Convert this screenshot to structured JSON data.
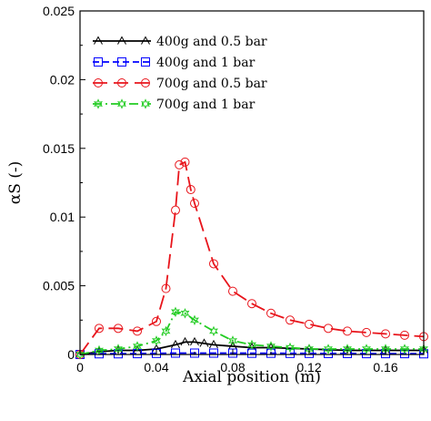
{
  "chart_data": {
    "type": "line",
    "title": "",
    "xlabel": "Axial position (m)",
    "ylabel": "αS (-)",
    "xlim": [
      0,
      0.18
    ],
    "ylim": [
      0,
      0.025
    ],
    "x_ticks": [
      "0",
      "0.04",
      "0.08",
      "0.12",
      "0.16"
    ],
    "x_tick_values": [
      0,
      0.04,
      0.08,
      0.12,
      0.16
    ],
    "y_ticks": [
      "0",
      "0.005",
      "0.01",
      "0.015",
      "0.02",
      "0.025"
    ],
    "y_tick_values": [
      0,
      0.005,
      0.01,
      0.015,
      0.02,
      0.025
    ],
    "legend_position": "top-left",
    "grid": false,
    "series": [
      {
        "name": "400g and 0.5 bar",
        "color": "#000000",
        "marker": "triangle",
        "line": "solid",
        "x": [
          0,
          0.01,
          0.02,
          0.03,
          0.04,
          0.05,
          0.055,
          0.06,
          0.065,
          0.07,
          0.08,
          0.09,
          0.1,
          0.12,
          0.14,
          0.16,
          0.18
        ],
        "y": [
          0,
          0.0002,
          0.0003,
          0.0003,
          0.0004,
          0.0007,
          0.0009,
          0.0009,
          0.0008,
          0.0007,
          0.0006,
          0.0005,
          0.0005,
          0.0004,
          0.0003,
          0.0003,
          0.0003
        ]
      },
      {
        "name": "400g and 1 bar",
        "color": "#0000ff",
        "marker": "square",
        "line": "dashed",
        "x": [
          0,
          0.01,
          0.02,
          0.03,
          0.04,
          0.05,
          0.06,
          0.07,
          0.08,
          0.09,
          0.1,
          0.11,
          0.12,
          0.13,
          0.14,
          0.15,
          0.16,
          0.17,
          0.18
        ],
        "y": [
          0,
          5e-05,
          5e-05,
          6e-05,
          8e-05,
          0.0001,
          0.0001,
          0.0001,
          0.0001,
          9e-05,
          9e-05,
          8e-05,
          8e-05,
          7e-05,
          7e-05,
          6e-05,
          6e-05,
          6e-05,
          5e-05
        ]
      },
      {
        "name": "700g and 0.5 bar",
        "color": "#e8141b",
        "marker": "circle",
        "line": "longdash",
        "x": [
          0,
          0.01,
          0.02,
          0.03,
          0.04,
          0.045,
          0.05,
          0.052,
          0.055,
          0.058,
          0.06,
          0.07,
          0.08,
          0.09,
          0.1,
          0.11,
          0.12,
          0.13,
          0.14,
          0.15,
          0.16,
          0.17,
          0.18
        ],
        "y": [
          0,
          0.0019,
          0.0019,
          0.0017,
          0.0024,
          0.0048,
          0.0105,
          0.0138,
          0.014,
          0.012,
          0.011,
          0.0066,
          0.0046,
          0.0037,
          0.003,
          0.0025,
          0.0022,
          0.0019,
          0.0017,
          0.0016,
          0.0015,
          0.0014,
          0.0013
        ]
      },
      {
        "name": "700g and 1 bar",
        "color": "#22cc22",
        "marker": "star",
        "line": "dashdot",
        "x": [
          0,
          0.01,
          0.02,
          0.03,
          0.04,
          0.045,
          0.05,
          0.055,
          0.06,
          0.07,
          0.08,
          0.09,
          0.1,
          0.11,
          0.12,
          0.13,
          0.14,
          0.15,
          0.16,
          0.17,
          0.18
        ],
        "y": [
          0,
          0.0003,
          0.0004,
          0.0006,
          0.001,
          0.0017,
          0.0031,
          0.003,
          0.0025,
          0.0017,
          0.001,
          0.0007,
          0.0006,
          0.0005,
          0.0004,
          0.0004,
          0.0004,
          0.0004,
          0.0004,
          0.0004,
          0.0004
        ]
      }
    ]
  }
}
